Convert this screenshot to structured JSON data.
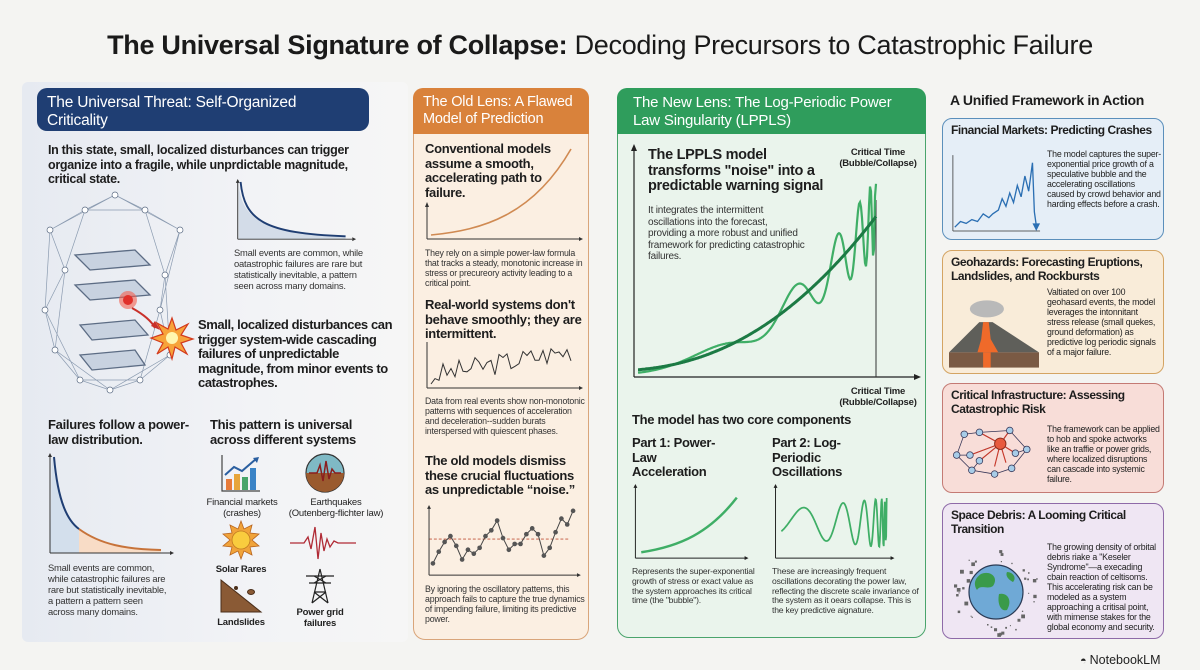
{
  "title": {
    "bold": "The Universal Signature of Collapse:",
    "regular": " Decoding Precursors to Catastrophic Failure"
  },
  "col1": {
    "header": "The Universal Threat: Self-Organized Criticality",
    "intro": "In this state, small, localized disturbances can trigger organize into a fragile, while unprdictable magnitude, critical state.",
    "chart_caption": "Small events are common, while oatastrophic failures are rare but statistically inevitable, a pattern seen across many domains.",
    "cascade_text": "Small, localized disturbances can trigger system-wide cascading failures of unpredictable magnitude, from minor events to catastrophes.",
    "powerlaw_heading": "Failures follow a power-law distribution.",
    "powerlaw_caption": "Small events are common, while catastrophic failures are rare but statistically inevitable, a pattern a pattern seen across many domains.",
    "universal_heading": "This pattern is universal across different systems",
    "systems": [
      {
        "icon": "bar-chart-trend-icon",
        "label": "Financial markets (crashes)"
      },
      {
        "icon": "seismograph-globe-icon",
        "label": "Earthquakes (Outenberg-flichter law)"
      },
      {
        "icon": "sun-icon",
        "label": "Solar Rares"
      },
      {
        "icon": "waveform-icon",
        "label": ""
      },
      {
        "icon": "landslide-icon",
        "label": "Landslides"
      },
      {
        "icon": "power-tower-icon",
        "label": "Power grid failures"
      }
    ]
  },
  "col2": {
    "header": "The Old Lens: A Flawed Model of Prediction",
    "h1": "Conventional models assume a smooth, accelerating path to failure.",
    "c1": "They rely on a simple power-law formula that tracks a steady, monotonic increase in stress or precureory activity leading to a critical point.",
    "h2": "Real-world systems don't behave smoothly; they are intermittent.",
    "c2": "Data from real events show non-monotonic patterns with sequences of acceleration and deceleration--sudden burats interspersed with quiescent phases.",
    "h3": "The old models dismiss these crucial fluctuations as unpredictable “noise.”",
    "c3": "By ignoring the oscillatory pattems, this approach fails to capture the true dynamics of impending failure, limiting its predictive power."
  },
  "col3": {
    "header": "The New Lens: The Log-Periodic Power Law Singularity (LPPLS)",
    "h1": "The LPPLS model transforms \"noise\" into a predictable warning signal",
    "c1": "It integrates the intermittent oscillations into the forecast, providing a more robust and unified framework for predicting catastrophic failures.",
    "critical_top": "Critical Time (Bubble/Collapse)",
    "critical_bottom": "Critical Time (Rubble/Collapse)",
    "components_heading": "The model has two core components",
    "part1_title": "Part 1: Power-Law Acceleration",
    "part1_caption": "Represents the super-exponential growth of stress or exact value as the system approaches its critical time (the \"bubble\").",
    "part2_title": "Part 2: Log-Periodic Oscillations",
    "part2_caption": "These are increasingly frequent oscillations decorating the power law, reflecting the discrete scale invariance of the system as it oears collapse. This is the key predictive aignature."
  },
  "col4": {
    "heading": "A Unified Framework in Action",
    "cards": [
      {
        "title": "Financial Markets: Predicting Crashes",
        "text": "The model captures the super-exponential price growth of a speculative bubble and the accelerating oscillations caused by crowd behavior and harding effects before a crash.",
        "color": "#5b8fbb",
        "bg": "#e5eef7"
      },
      {
        "title": "Geohazards: Forecasting Eruptions, Landslides, and Rockbursts",
        "text": "Valtiated on over 100 geohasard events, the model leverages the intonnitant stress release (small quekes, ground deformation) as predictive log periodic signals of a major failure.",
        "color": "#d4a463",
        "bg": "#f9ecd9"
      },
      {
        "title": "Critical Infrastructure: Assessing Catastrophic Risk",
        "text": "The framework can be applied to hob and spoke actworks like an traffie or power grids, where localized disruptions can cascade into systemic failure.",
        "color": "#c47a74",
        "bg": "#f8ddd8"
      },
      {
        "title": "Space Debris: A Looming Critical Transition",
        "text": "The growing density of orbital debris riake a \"Keseler Syndrome\"—a execading cbain reaction of celtisoms. This accelerating risk can be modeled as a system approaching a critisal point, with mimense stakes for the global economy and security.",
        "color": "#8e6aa8",
        "bg": "#efe6f3"
      }
    ]
  },
  "brand": "NotebookLM",
  "colors": {
    "navy": "#1f3e73",
    "orange": "#d9823b",
    "green": "#2f9d5c"
  }
}
